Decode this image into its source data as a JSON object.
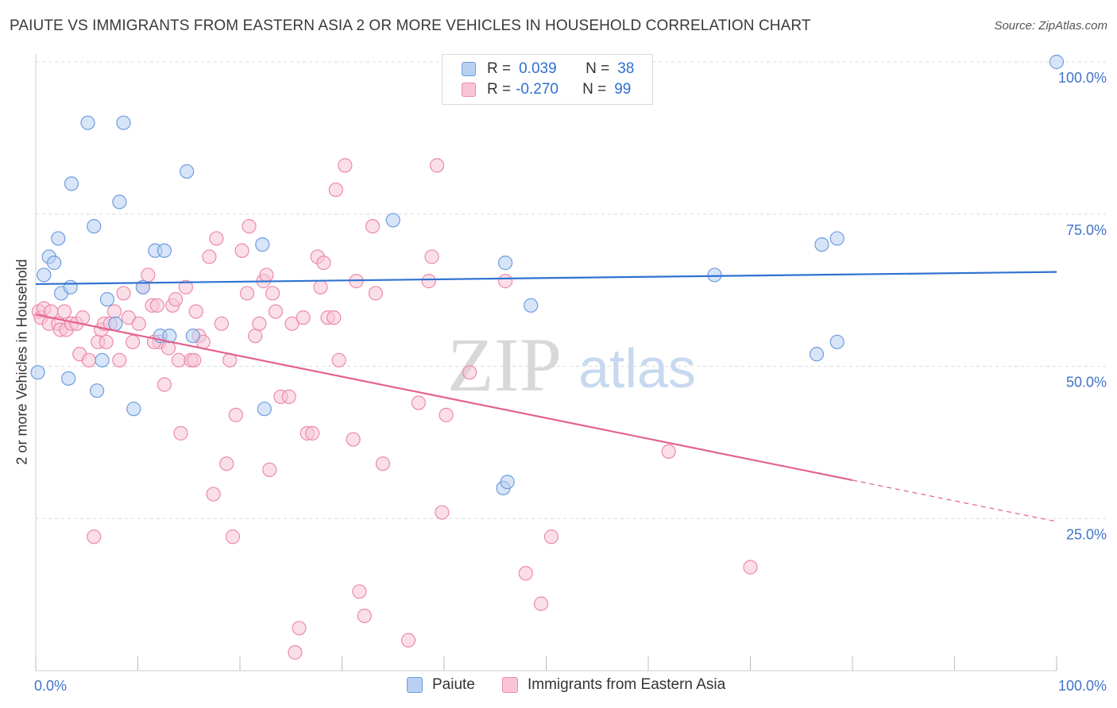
{
  "title": "PAIUTE VS IMMIGRANTS FROM EASTERN ASIA 2 OR MORE VEHICLES IN HOUSEHOLD CORRELATION CHART",
  "source": "Source: ZipAtlas.com",
  "watermark": {
    "zip": "ZIP",
    "atlas": "atlas"
  },
  "colors": {
    "blue_fill": "#b8d0f2",
    "blue_stroke": "#6d9de0",
    "blue_line": "#2f72d0",
    "pink_fill": "#f8c4d6",
    "pink_stroke": "#eb8aaa",
    "pink_line": "#e4628e",
    "axis_text": "#3f74c9",
    "grid": "#dcdcdc"
  },
  "legend": {
    "rows": [
      {
        "r_label": "R =",
        "r_value": "0.039",
        "n_label": "N =",
        "n_value": "38"
      },
      {
        "r_label": "R =",
        "r_value": "-0.270",
        "n_label": "N =",
        "n_value": "99"
      }
    ]
  },
  "bottom_legend": [
    "Paiute",
    "Immigrants from Eastern Asia"
  ],
  "chart_data": {
    "type": "scatter",
    "xlabel": "",
    "ylabel": "2 or more Vehicles in Household",
    "xlim": [
      0,
      100
    ],
    "ylim": [
      0,
      100
    ],
    "x_tick_labels": [
      "0.0%",
      "100.0%"
    ],
    "y_tick_labels": [
      "25.0%",
      "50.0%",
      "75.0%",
      "100.0%"
    ],
    "y_ticks": [
      25,
      50,
      75,
      100
    ],
    "grid": true,
    "legend_position": "top-center",
    "series": [
      {
        "name": "Paiute",
        "color": "blue",
        "points": [
          [
            0.2,
            49
          ],
          [
            0.8,
            65
          ],
          [
            1.3,
            68
          ],
          [
            1.8,
            67
          ],
          [
            2.2,
            71
          ],
          [
            2.5,
            62
          ],
          [
            3.2,
            48
          ],
          [
            3.4,
            63
          ],
          [
            3.5,
            80
          ],
          [
            5.1,
            90
          ],
          [
            5.7,
            73
          ],
          [
            6.0,
            46
          ],
          [
            6.5,
            51
          ],
          [
            7.0,
            61
          ],
          [
            7.8,
            57
          ],
          [
            8.2,
            77
          ],
          [
            8.6,
            90
          ],
          [
            9.6,
            43
          ],
          [
            10.5,
            63
          ],
          [
            11.7,
            69
          ],
          [
            12.2,
            55
          ],
          [
            12.6,
            69
          ],
          [
            13.1,
            55
          ],
          [
            14.8,
            82
          ],
          [
            15.4,
            55
          ],
          [
            22.2,
            70
          ],
          [
            22.4,
            43
          ],
          [
            35.0,
            74
          ],
          [
            45.8,
            30
          ],
          [
            46.2,
            31
          ],
          [
            46.0,
            67
          ],
          [
            48.5,
            60
          ],
          [
            66.5,
            65
          ],
          [
            76.5,
            52
          ],
          [
            78.5,
            54
          ],
          [
            77.0,
            70
          ],
          [
            78.5,
            71
          ],
          [
            100.0,
            100
          ]
        ],
        "trend": {
          "x": [
            0,
            100
          ],
          "y": [
            63.5,
            65.5
          ]
        }
      },
      {
        "name": "Immigrants from Eastern Asia",
        "color": "pink",
        "points": [
          [
            0.3,
            59
          ],
          [
            0.5,
            58
          ],
          [
            0.8,
            59.5
          ],
          [
            1.3,
            57
          ],
          [
            1.5,
            59
          ],
          [
            2.2,
            57
          ],
          [
            2.4,
            56
          ],
          [
            2.8,
            59
          ],
          [
            3.0,
            56
          ],
          [
            3.5,
            57
          ],
          [
            4.0,
            57
          ],
          [
            4.3,
            52
          ],
          [
            4.6,
            58
          ],
          [
            5.2,
            51
          ],
          [
            5.7,
            22
          ],
          [
            6.1,
            54
          ],
          [
            6.4,
            56
          ],
          [
            6.7,
            57
          ],
          [
            7.3,
            57
          ],
          [
            7.7,
            59
          ],
          [
            8.2,
            51
          ],
          [
            8.6,
            62
          ],
          [
            9.1,
            58
          ],
          [
            9.5,
            54
          ],
          [
            10.1,
            57
          ],
          [
            10.5,
            63
          ],
          [
            11.0,
            65
          ],
          [
            11.4,
            60
          ],
          [
            11.9,
            60
          ],
          [
            12.1,
            54
          ],
          [
            12.6,
            47
          ],
          [
            13.0,
            53
          ],
          [
            13.4,
            60
          ],
          [
            13.7,
            61
          ],
          [
            14.0,
            51
          ],
          [
            14.2,
            39
          ],
          [
            14.7,
            63
          ],
          [
            15.2,
            51
          ],
          [
            15.5,
            51
          ],
          [
            16.0,
            55
          ],
          [
            16.4,
            54
          ],
          [
            17.0,
            68
          ],
          [
            17.4,
            29
          ],
          [
            17.7,
            71
          ],
          [
            18.2,
            57
          ],
          [
            18.7,
            34
          ],
          [
            19.0,
            51
          ],
          [
            19.3,
            22
          ],
          [
            19.6,
            42
          ],
          [
            20.2,
            69
          ],
          [
            20.7,
            62
          ],
          [
            20.9,
            73
          ],
          [
            21.5,
            55
          ],
          [
            21.9,
            57
          ],
          [
            22.3,
            64
          ],
          [
            22.6,
            65
          ],
          [
            22.9,
            33
          ],
          [
            23.2,
            62
          ],
          [
            23.5,
            59
          ],
          [
            24.0,
            45
          ],
          [
            24.8,
            45
          ],
          [
            25.1,
            57
          ],
          [
            25.4,
            3
          ],
          [
            25.8,
            7
          ],
          [
            26.2,
            58
          ],
          [
            26.6,
            39
          ],
          [
            27.1,
            39
          ],
          [
            27.6,
            68
          ],
          [
            27.9,
            63
          ],
          [
            28.2,
            67
          ],
          [
            28.6,
            58
          ],
          [
            29.2,
            58
          ],
          [
            29.7,
            51
          ],
          [
            30.3,
            83
          ],
          [
            29.4,
            79
          ],
          [
            31.1,
            38
          ],
          [
            31.4,
            64
          ],
          [
            31.7,
            13
          ],
          [
            32.2,
            9
          ],
          [
            33.0,
            73
          ],
          [
            33.3,
            62
          ],
          [
            34.0,
            34
          ],
          [
            36.5,
            5
          ],
          [
            37.5,
            44
          ],
          [
            38.5,
            64
          ],
          [
            38.8,
            68
          ],
          [
            39.3,
            83
          ],
          [
            39.8,
            26
          ],
          [
            40.2,
            42
          ],
          [
            42.5,
            49
          ],
          [
            46.0,
            64
          ],
          [
            48.0,
            16
          ],
          [
            49.5,
            11
          ],
          [
            50.5,
            22
          ],
          [
            62.0,
            36
          ],
          [
            70.0,
            17
          ],
          [
            11.6,
            54
          ],
          [
            15.7,
            59
          ],
          [
            6.9,
            54
          ]
        ],
        "trend": {
          "x": [
            0,
            100
          ],
          "y": [
            58.5,
            24.5
          ],
          "solid_until_x": 80
        }
      }
    ]
  }
}
